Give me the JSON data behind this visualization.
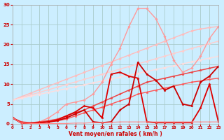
{
  "x": [
    0,
    1,
    2,
    3,
    4,
    5,
    6,
    7,
    8,
    9,
    10,
    11,
    12,
    13,
    14,
    15,
    16,
    17,
    18,
    19,
    20,
    21,
    22,
    23
  ],
  "series": [
    {
      "y": [
        6.0,
        6.87,
        7.74,
        8.61,
        9.48,
        10.35,
        11.22,
        12.09,
        12.96,
        13.83,
        14.7,
        15.57,
        16.44,
        17.31,
        18.18,
        19.05,
        19.92,
        20.79,
        21.66,
        22.53,
        23.4,
        23.87,
        24.24,
        24.5
      ],
      "color": "#ffbbbb",
      "lw": 1.0,
      "marker": "D",
      "ms": 1.8
    },
    {
      "y": [
        6.0,
        6.65,
        7.3,
        7.95,
        8.6,
        9.25,
        9.9,
        10.55,
        11.2,
        11.85,
        12.5,
        13.15,
        13.8,
        14.45,
        15.1,
        15.75,
        16.4,
        17.05,
        17.7,
        18.35,
        19.0,
        19.6,
        20.2,
        20.8
      ],
      "color": "#ffcccc",
      "lw": 1.0,
      "marker": "D",
      "ms": 1.8
    },
    {
      "y": [
        6.0,
        6.48,
        6.96,
        7.44,
        7.92,
        8.4,
        8.88,
        9.36,
        9.84,
        10.32,
        10.8,
        11.28,
        11.76,
        12.24,
        12.72,
        13.2,
        13.68,
        14.16,
        14.64,
        15.12,
        15.6,
        16.08,
        16.56,
        17.0
      ],
      "color": "#ffdddd",
      "lw": 1.0,
      "marker": "D",
      "ms": 1.8
    },
    {
      "y": [
        1.5,
        0.3,
        0.2,
        0.5,
        1.5,
        3.0,
        5.0,
        5.5,
        6.0,
        7.5,
        10.5,
        15.0,
        19.0,
        24.5,
        29.0,
        29.0,
        26.5,
        22.0,
        16.0,
        13.0,
        14.0,
        17.0,
        21.5,
        24.5
      ],
      "color": "#ff9999",
      "lw": 1.0,
      "marker": "D",
      "ms": 1.8
    },
    {
      "y": [
        1.5,
        0.5,
        0.3,
        0.5,
        0.8,
        1.2,
        2.0,
        2.8,
        3.5,
        4.5,
        5.5,
        6.5,
        7.5,
        8.5,
        9.5,
        10.5,
        11.0,
        11.5,
        12.0,
        12.5,
        13.0,
        13.5,
        14.0,
        14.5
      ],
      "color": "#ee4444",
      "lw": 1.1,
      "marker": "*",
      "ms": 2.5
    },
    {
      "y": [
        1.5,
        0.3,
        0.1,
        0.3,
        0.5,
        0.8,
        1.2,
        2.0,
        2.8,
        3.5,
        4.2,
        5.0,
        5.8,
        6.5,
        7.5,
        8.0,
        8.5,
        9.0,
        9.5,
        10.0,
        10.5,
        10.8,
        11.2,
        11.5
      ],
      "color": "#ff5555",
      "lw": 1.0,
      "marker": "*",
      "ms": 2.5
    },
    {
      "y": [
        1.5,
        0.2,
        0.1,
        0.3,
        0.5,
        0.8,
        1.5,
        2.5,
        3.5,
        0.5,
        0.3,
        0.5,
        3.5,
        5.0,
        15.5,
        12.5,
        11.0,
        8.5,
        9.5,
        5.0,
        4.5,
        10.5,
        12.0,
        14.5
      ],
      "color": "#cc0000",
      "lw": 1.3,
      "marker": "*",
      "ms": 2.5
    },
    {
      "y": [
        1.5,
        0.2,
        0.1,
        0.3,
        0.5,
        1.0,
        2.0,
        3.0,
        4.5,
        4.0,
        1.5,
        12.5,
        13.0,
        12.0,
        11.5,
        0.5,
        0.3,
        0.3,
        0.3,
        0.3,
        0.3,
        4.0,
        10.0,
        0.5
      ],
      "color": "#dd0000",
      "lw": 1.3,
      "marker": "*",
      "ms": 2.5
    },
    {
      "y": [
        1.5,
        0.2,
        0.1,
        0.1,
        0.1,
        0.1,
        0.1,
        0.2,
        0.2,
        0.3,
        0.3,
        0.4,
        0.5,
        0.5,
        0.5,
        0.5,
        0.5,
        0.5,
        0.5,
        0.5,
        0.5,
        0.5,
        0.5,
        0.5
      ],
      "color": "#ff8888",
      "lw": 0.8,
      "marker": "*",
      "ms": 1.5
    }
  ],
  "xlabel": "Vent moyen/en rafales ( km/h )",
  "xlim": [
    0,
    23
  ],
  "ylim": [
    0,
    30
  ],
  "yticks": [
    0,
    5,
    10,
    15,
    20,
    25,
    30
  ],
  "xticks": [
    0,
    1,
    2,
    3,
    4,
    5,
    6,
    7,
    8,
    9,
    10,
    11,
    12,
    13,
    14,
    15,
    16,
    17,
    18,
    19,
    20,
    21,
    22,
    23
  ],
  "bg_color": "#cceeff",
  "grid_color": "#aacccc",
  "tick_color": "#cc0000",
  "label_color": "#cc0000"
}
